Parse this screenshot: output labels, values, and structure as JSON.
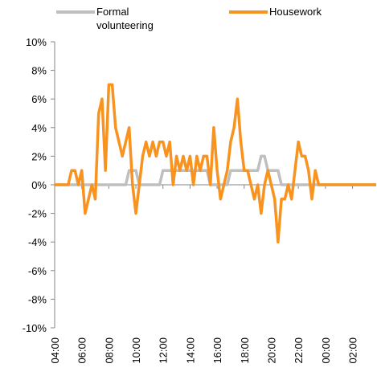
{
  "chart_data": {
    "type": "line",
    "x": [
      4,
      4.25,
      4.5,
      4.75,
      5,
      5.25,
      5.5,
      5.75,
      6,
      6.25,
      6.5,
      6.75,
      7,
      7.25,
      7.5,
      7.75,
      8,
      8.25,
      8.5,
      8.75,
      9,
      9.25,
      9.5,
      9.75,
      10,
      10.25,
      10.5,
      10.75,
      11,
      11.25,
      11.5,
      11.75,
      12,
      12.25,
      12.5,
      12.75,
      13,
      13.25,
      13.5,
      13.75,
      14,
      14.25,
      14.5,
      14.75,
      15,
      15.25,
      15.5,
      15.75,
      16,
      16.25,
      16.5,
      16.75,
      17,
      17.25,
      17.5,
      17.75,
      18,
      18.25,
      18.5,
      18.75,
      19,
      19.25,
      19.5,
      19.75,
      20,
      20.25,
      20.5,
      20.75,
      21,
      21.25,
      21.5,
      21.75,
      22,
      22.25,
      22.5,
      22.75,
      23,
      23.25,
      23.5,
      23.75,
      24,
      24.25,
      24.5,
      24.75,
      25,
      25.25,
      25.5,
      25.75,
      26,
      26.25,
      26.5,
      26.75,
      27,
      27.25,
      27.5,
      27.75
    ],
    "series": [
      {
        "name": "Formal volunteering",
        "color": "#bfbfbf",
        "values": [
          0,
          0,
          0,
          0,
          0,
          0,
          0,
          0,
          0,
          0,
          0,
          0,
          0,
          0,
          0,
          0,
          0,
          0,
          0,
          0,
          0,
          0,
          1,
          1,
          1,
          0,
          0,
          0,
          0,
          0,
          0,
          0,
          1,
          1,
          1,
          1,
          1,
          1,
          1,
          1,
          1,
          1,
          1,
          1,
          1,
          1,
          0,
          0,
          0,
          0,
          0,
          0,
          1,
          1,
          1,
          1,
          1,
          1,
          1,
          1,
          1,
          2,
          2,
          1,
          1,
          1,
          1,
          0,
          0,
          0,
          0,
          0,
          0,
          0,
          0,
          0,
          0,
          0,
          0,
          0,
          0,
          0,
          0,
          0,
          0,
          0,
          0,
          0,
          0,
          0,
          0,
          0,
          0,
          0,
          0,
          0
        ]
      },
      {
        "name": "Housework",
        "color": "#f7931e",
        "values": [
          0,
          0,
          0,
          0,
          0,
          1,
          1,
          0,
          1,
          -2,
          -1,
          0,
          -1,
          5,
          6,
          1,
          7,
          7,
          4,
          3,
          2,
          3,
          4,
          0,
          -2,
          0,
          2,
          3,
          2,
          3,
          2,
          3,
          3,
          2,
          3,
          0,
          2,
          1,
          2,
          1,
          2,
          0,
          2,
          1,
          2,
          2,
          0,
          4,
          1,
          -1,
          0,
          1,
          3,
          4,
          6,
          3,
          1,
          1,
          0,
          -1,
          0,
          -2,
          0,
          1,
          0,
          -1,
          -4,
          -1,
          -1,
          0,
          -1,
          1,
          3,
          2,
          2,
          1,
          -1,
          1,
          0,
          0,
          0,
          0,
          0,
          0,
          0,
          0,
          0,
          0,
          0,
          0,
          0,
          0,
          0,
          0,
          0,
          0
        ]
      }
    ],
    "xlim": [
      4,
      27.75
    ],
    "xticks": [
      {
        "value": 4,
        "label": "04:00"
      },
      {
        "value": 6,
        "label": "06:00"
      },
      {
        "value": 8,
        "label": "08:00"
      },
      {
        "value": 10,
        "label": "10:00"
      },
      {
        "value": 12,
        "label": "12:00"
      },
      {
        "value": 14,
        "label": "14:00"
      },
      {
        "value": 16,
        "label": "16:00"
      },
      {
        "value": 18,
        "label": "18:00"
      },
      {
        "value": 20,
        "label": "20:00"
      },
      {
        "value": 22,
        "label": "22:00"
      },
      {
        "value": 24,
        "label": "00:00"
      },
      {
        "value": 26,
        "label": "02:00"
      }
    ],
    "ylim": [
      -10,
      10
    ],
    "yticks": [
      {
        "value": -10,
        "label": "-10%"
      },
      {
        "value": -8,
        "label": "-8%"
      },
      {
        "value": -6,
        "label": "-6%"
      },
      {
        "value": -4,
        "label": "-4%"
      },
      {
        "value": -2,
        "label": "-2%"
      },
      {
        "value": 0,
        "label": "0%"
      },
      {
        "value": 2,
        "label": "2%"
      },
      {
        "value": 4,
        "label": "4%"
      },
      {
        "value": 6,
        "label": "6%"
      },
      {
        "value": 8,
        "label": "8%"
      },
      {
        "value": 10,
        "label": "10%"
      }
    ],
    "legend": "top"
  }
}
